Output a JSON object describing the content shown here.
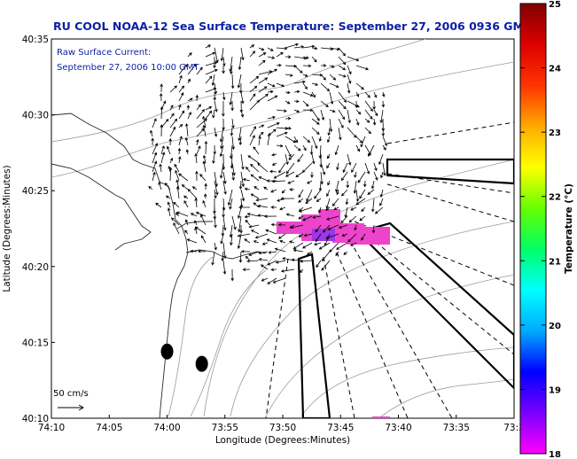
{
  "chart_data": {
    "type": "map",
    "title": "RU COOL  NOAA-12  Sea Surface Temperature:  September 27, 2006 0936 GMT",
    "subtitle_lines": [
      "Raw Surface Current:",
      "September 27, 2006 10:00 GMT"
    ],
    "xlabel": "Longitude (Degrees:Minutes)",
    "ylabel": "Latitude (Degrees:Minutes)",
    "x_ticks": [
      "74:10",
      "74:05",
      "74:00",
      "73:55",
      "73:50",
      "73:45",
      "73:40",
      "73:35",
      "73:3"
    ],
    "y_ticks": [
      "40:10",
      "40:15",
      "40:20",
      "40:25",
      "40:30",
      "40:35"
    ],
    "xlim": [
      -74.1667,
      -73.5
    ],
    "ylim": [
      40.1667,
      40.5833
    ],
    "colorbar": {
      "label": "Temperature (°C)",
      "ticks": [
        "18",
        "19",
        "20",
        "21",
        "22",
        "23",
        "24",
        "25"
      ],
      "range": [
        18,
        25
      ],
      "colors": [
        "#ff00ff",
        "#7a00ff",
        "#0000ff",
        "#00aaff",
        "#00ffff",
        "#00ff66",
        "#66ff00",
        "#ffff00",
        "#ffaa00",
        "#ff3300",
        "#dd0000",
        "#800000"
      ]
    },
    "scale_label": "50 cm/s",
    "sst_patch_color": "#ee44cc",
    "markers": [
      {
        "lon": -74.0,
        "lat": 40.24
      },
      {
        "lon": -73.95,
        "lat": 40.2264
      }
    ]
  }
}
